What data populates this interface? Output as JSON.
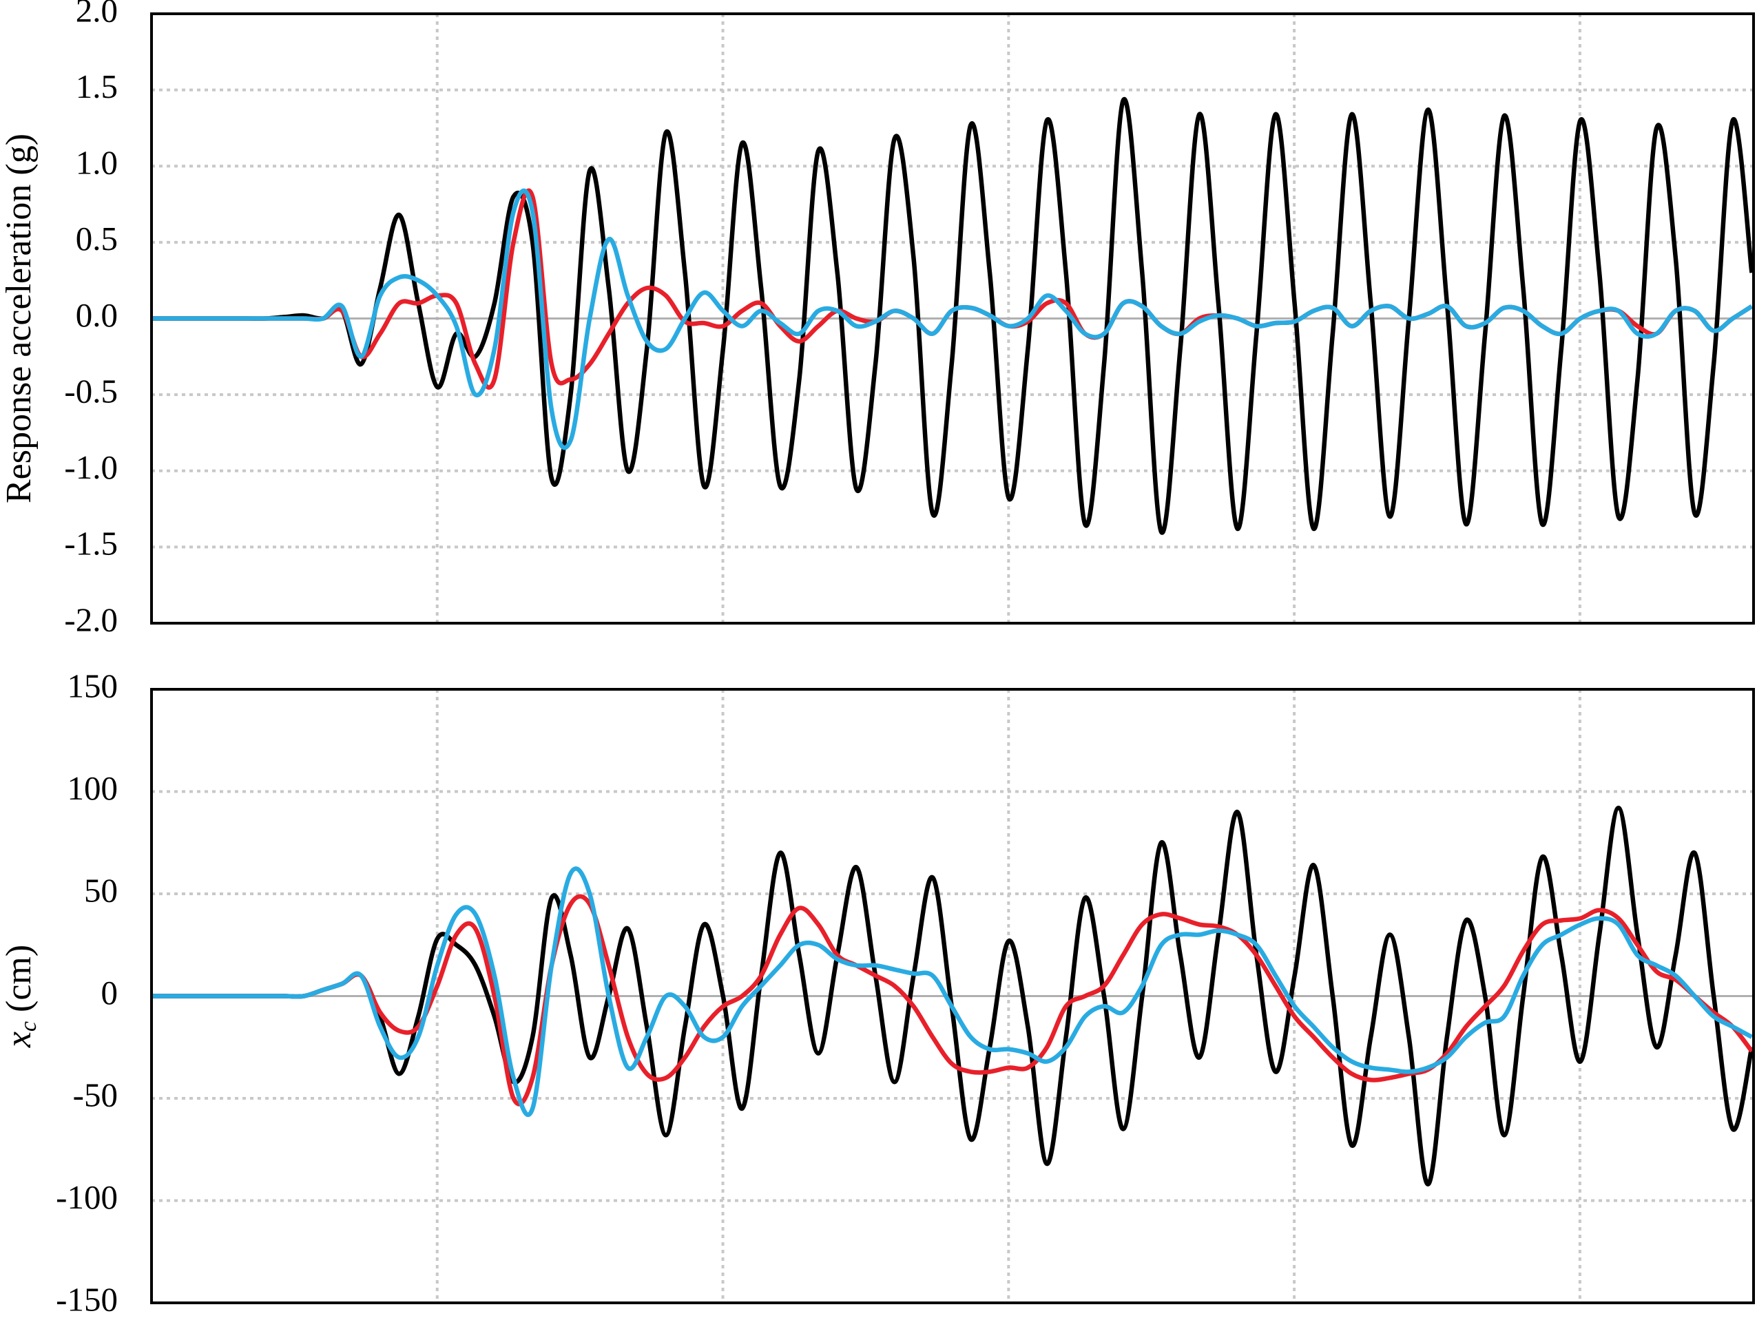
{
  "chart_data": [
    {
      "type": "line",
      "ylabel": "Response acceleration (g)",
      "grid": true,
      "ylim": [
        -2,
        2
      ],
      "yticks": [
        {
          "value": -2,
          "label": "-2.0"
        },
        {
          "value": -1.5,
          "label": "-1.5"
        },
        {
          "value": -1,
          "label": "-1.0"
        },
        {
          "value": -0.5,
          "label": "-0.5"
        },
        {
          "value": 0,
          "label": "0.0"
        },
        {
          "value": 0.5,
          "label": "0.5"
        },
        {
          "value": 1,
          "label": "1.0"
        },
        {
          "value": 1.5,
          "label": "1.5"
        },
        {
          "value": 2,
          "label": "2.0"
        }
      ],
      "series": [
        {
          "color": "#000000",
          "values": [
            0,
            0,
            0,
            0,
            0,
            0,
            0,
            0.01,
            0.02,
            0,
            0.05,
            -0.3,
            0.2,
            0.68,
            0.1,
            -0.45,
            -0.1,
            -0.25,
            0.1,
            0.8,
            0.5,
            -1.05,
            -0.5,
            0.97,
            0.2,
            -1.0,
            -0.2,
            1.22,
            0.3,
            -1.1,
            -0.2,
            1.15,
            0.2,
            -1.1,
            -0.4,
            1.1,
            0.3,
            -1.12,
            -0.3,
            1.18,
            0.4,
            -1.28,
            -0.3,
            1.27,
            0.3,
            -1.18,
            -0.2,
            1.3,
            0.3,
            -1.35,
            -0.3,
            1.43,
            0.3,
            -1.4,
            -0.2,
            1.34,
            0.1,
            -1.38,
            -0.1,
            1.34,
            0.1,
            -1.38,
            -0.1,
            1.34,
            0.1,
            -1.3,
            0,
            1.37,
            0.1,
            -1.35,
            -0.1,
            1.33,
            0.2,
            -1.35,
            -0.2,
            1.3,
            0.3,
            -1.3,
            -0.4,
            1.25,
            0.4,
            -1.28,
            -0.3,
            1.3,
            0.3
          ]
        },
        {
          "color": "#e8202a",
          "values": [
            0,
            0,
            0,
            0,
            0,
            0,
            0,
            0,
            0,
            0,
            0.05,
            -0.25,
            -0.1,
            0.1,
            0.1,
            0.15,
            0.1,
            -0.3,
            -0.4,
            0.5,
            0.8,
            -0.3,
            -0.4,
            -0.3,
            -0.1,
            0.1,
            0.2,
            0.15,
            -0.02,
            -0.03,
            -0.05,
            0.05,
            0.1,
            -0.05,
            -0.15,
            -0.05,
            0.05,
            0,
            -0.02,
            0.05,
            0,
            -0.1,
            0.05,
            0.07,
            0.02,
            -0.05,
            -0.02,
            0.1,
            0.1,
            -0.1,
            -0.1,
            0.1,
            0.08,
            -0.05,
            -0.1,
            0,
            0.02,
            0,
            -0.05,
            -0.03,
            -0.02,
            0.05,
            0.07,
            -0.05,
            0.05,
            0.08,
            0,
            0.03,
            0.08,
            -0.05,
            -0.03,
            0.07,
            0.05,
            -0.05,
            -0.1,
            0,
            0.05,
            0.05,
            -0.05,
            -0.1,
            0.05,
            0.05,
            -0.08,
            0,
            0.08
          ]
        },
        {
          "color": "#29abe2",
          "values": [
            0,
            0,
            0,
            0,
            0,
            0,
            0,
            0,
            0,
            0,
            0.08,
            -0.25,
            0.15,
            0.27,
            0.25,
            0.15,
            -0.05,
            -0.5,
            -0.2,
            0.7,
            0.7,
            -0.6,
            -0.8,
            0,
            0.52,
            0.15,
            -0.15,
            -0.2,
            0,
            0.17,
            0.05,
            -0.05,
            0.05,
            -0.03,
            -0.1,
            0.05,
            0.05,
            -0.05,
            -0.02,
            0.05,
            0,
            -0.1,
            0.05,
            0.07,
            0.02,
            -0.05,
            0,
            0.15,
            0.05,
            -0.1,
            -0.1,
            0.1,
            0.08,
            -0.05,
            -0.1,
            -0.02,
            0.02,
            0,
            -0.05,
            -0.03,
            -0.02,
            0.05,
            0.07,
            -0.05,
            0.05,
            0.08,
            0,
            0.03,
            0.08,
            -0.05,
            -0.03,
            0.07,
            0.05,
            -0.05,
            -0.1,
            0,
            0.05,
            0.05,
            -0.1,
            -0.1,
            0.05,
            0.05,
            -0.08,
            0,
            0.08
          ]
        }
      ]
    },
    {
      "type": "line",
      "ylabel": {
        "var": "x",
        "sub": "c",
        "unit": " (cm)"
      },
      "grid": true,
      "ylim": [
        -150,
        150
      ],
      "yticks": [
        -150,
        -100,
        -50,
        0,
        50,
        100,
        150
      ],
      "series": [
        {
          "color": "#000000",
          "values": [
            0,
            0,
            0,
            0,
            0,
            0,
            0,
            0,
            0,
            3,
            6,
            10,
            -10,
            -38,
            -10,
            28,
            25,
            15,
            -10,
            -42,
            -20,
            48,
            20,
            -30,
            0,
            33,
            -15,
            -68,
            -15,
            35,
            0,
            -55,
            10,
            70,
            20,
            -28,
            20,
            63,
            10,
            -42,
            10,
            58,
            -5,
            -70,
            -25,
            27,
            -15,
            -82,
            -20,
            48,
            0,
            -65,
            0,
            75,
            20,
            -30,
            30,
            90,
            20,
            -37,
            10,
            64,
            0,
            -73,
            -20,
            30,
            -20,
            -92,
            -20,
            37,
            0,
            -68,
            0,
            68,
            20,
            -32,
            30,
            92,
            30,
            -25,
            20,
            70,
            0,
            -65,
            -25
          ]
        },
        {
          "color": "#e8202a",
          "values": [
            0,
            0,
            0,
            0,
            0,
            0,
            0,
            0,
            0,
            3,
            6,
            10,
            -8,
            -17,
            -15,
            5,
            30,
            33,
            0,
            -50,
            -40,
            15,
            45,
            45,
            15,
            -20,
            -38,
            -40,
            -30,
            -15,
            -5,
            0,
            10,
            30,
            43,
            35,
            20,
            15,
            10,
            5,
            -5,
            -20,
            -33,
            -37,
            -37,
            -35,
            -35,
            -25,
            -5,
            0,
            5,
            20,
            35,
            40,
            38,
            35,
            34,
            30,
            20,
            5,
            -10,
            -20,
            -30,
            -38,
            -41,
            -40,
            -38,
            -36,
            -28,
            -15,
            -5,
            5,
            22,
            35,
            37,
            38,
            42,
            38,
            25,
            12,
            8,
            0,
            -8,
            -15,
            -27
          ]
        },
        {
          "color": "#29abe2",
          "values": [
            0,
            0,
            0,
            0,
            0,
            0,
            0,
            0,
            0,
            3,
            6,
            10,
            -15,
            -30,
            -20,
            15,
            40,
            40,
            10,
            -40,
            -55,
            15,
            60,
            50,
            0,
            -35,
            -20,
            0,
            -5,
            -20,
            -20,
            -5,
            5,
            15,
            25,
            25,
            18,
            15,
            15,
            13,
            11,
            10,
            -5,
            -20,
            -26,
            -26,
            -28,
            -32,
            -25,
            -10,
            -5,
            -8,
            5,
            25,
            30,
            30,
            32,
            30,
            25,
            10,
            -5,
            -15,
            -25,
            -32,
            -35,
            -36,
            -37,
            -35,
            -30,
            -20,
            -13,
            -10,
            10,
            25,
            30,
            35,
            38,
            35,
            20,
            15,
            10,
            0,
            -10,
            -15,
            -20
          ]
        }
      ]
    }
  ]
}
